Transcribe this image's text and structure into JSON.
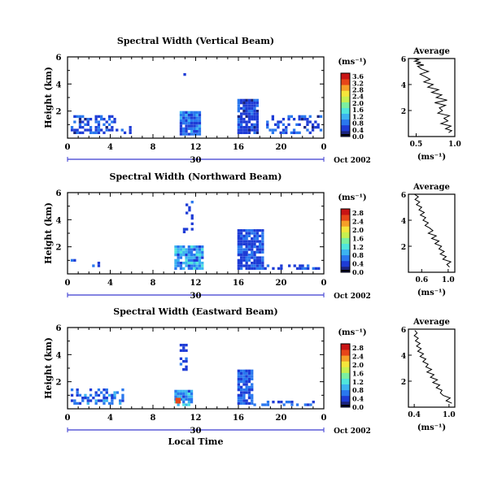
{
  "colors": {
    "scale": [
      "#1a237e",
      "#1e3cd6",
      "#2a78ee",
      "#3cb4f0",
      "#50e6dc",
      "#7cf0a0",
      "#c8f050",
      "#f5e63c",
      "#f5a028",
      "#e64619",
      "#c81414"
    ],
    "axis": "#000000",
    "date_axis": "#3a3ad0"
  },
  "chart_data": [
    {
      "type": "heatmap",
      "title": "Spectral Width (Vertical Beam)",
      "ylabel": "Height (km)",
      "xlabel": "",
      "xlim": [
        0,
        24
      ],
      "ylim": [
        0,
        6
      ],
      "x_ticks": [
        "0",
        "4",
        "8",
        "12",
        "16",
        "20",
        "0"
      ],
      "y_ticks": [
        "2",
        "4",
        "6"
      ],
      "date_label": "Oct 2002",
      "date_tick": "30",
      "colorbar": {
        "unit": "(ms⁻¹)",
        "ticks": [
          "0.0",
          "0.4",
          "0.8",
          "1.2",
          "1.6",
          "2.0",
          "2.4",
          "2.8",
          "3.2",
          "3.6"
        ],
        "range": [
          0,
          3.8
        ]
      },
      "blocks": [
        {
          "x": [
            0.3,
            4.5
          ],
          "y": [
            0.3,
            1.6
          ],
          "density": 0.5,
          "v": [
            0.3,
            0.9
          ]
        },
        {
          "x": [
            4.5,
            5.8
          ],
          "y": [
            0.3,
            0.8
          ],
          "density": 0.3,
          "v": [
            0.3,
            0.8
          ]
        },
        {
          "x": [
            10.5,
            12.4
          ],
          "y": [
            0.2,
            1.8
          ],
          "density": 0.95,
          "v": [
            0.4,
            1.1
          ]
        },
        {
          "x": [
            10.6,
            11.0
          ],
          "y": [
            3.6,
            5.0
          ],
          "density": 0.3,
          "v": [
            0.3,
            0.6
          ]
        },
        {
          "x": [
            15.9,
            17.7
          ],
          "y": [
            0.3,
            2.9
          ],
          "density": 0.85,
          "v": [
            0.3,
            0.8
          ]
        },
        {
          "x": [
            18.6,
            23.8
          ],
          "y": [
            0.3,
            1.5
          ],
          "density": 0.4,
          "v": [
            0.3,
            0.9
          ]
        }
      ],
      "average": {
        "title": "Average",
        "xlabel": "(ms⁻¹)",
        "xlim": [
          0.4,
          1.0
        ],
        "x_ticks": [
          "0.5",
          "1.0"
        ],
        "y_ticks": [
          "2",
          "4",
          "6"
        ],
        "ylim": [
          0,
          6
        ],
        "x": [
          0.92,
          0.96,
          0.88,
          0.95,
          0.82,
          0.91,
          0.86,
          0.93,
          0.78,
          0.84,
          0.8,
          0.88,
          0.74,
          0.9,
          0.76,
          0.83,
          0.7,
          0.79,
          0.65,
          0.72,
          0.6,
          0.68,
          0.62,
          0.55,
          0.66,
          0.57,
          0.52,
          0.6,
          0.5,
          0.56,
          0.48,
          0.53,
          0.47
        ],
        "y": [
          0.3,
          0.45,
          0.6,
          0.8,
          1.0,
          1.2,
          1.4,
          1.6,
          1.8,
          2.0,
          2.2,
          2.4,
          2.6,
          2.8,
          3.0,
          3.2,
          3.4,
          3.6,
          3.8,
          4.0,
          4.2,
          4.4,
          4.6,
          4.8,
          5.0,
          5.2,
          5.4,
          5.5,
          5.6,
          5.7,
          5.8,
          5.9,
          6.0
        ]
      }
    },
    {
      "type": "heatmap",
      "title": "Spectral Width (Northward Beam)",
      "ylabel": "Height (km)",
      "xlabel": "",
      "xlim": [
        0,
        24
      ],
      "ylim": [
        0,
        6
      ],
      "x_ticks": [
        "0",
        "4",
        "8",
        "12",
        "16",
        "20",
        "0"
      ],
      "y_ticks": [
        "2",
        "4",
        "6"
      ],
      "date_label": "Oct 2002",
      "date_tick": "30",
      "colorbar": {
        "unit": "(ms⁻¹)",
        "ticks": [
          "0.0",
          "0.4",
          "0.8",
          "1.2",
          "1.6",
          "2.0",
          "2.4",
          "2.8"
        ],
        "range": [
          0,
          3.0
        ]
      },
      "blocks": [
        {
          "x": [
            0.3,
            3.8
          ],
          "y": [
            0.3,
            1.0
          ],
          "density": 0.15,
          "v": [
            0.3,
            0.7
          ]
        },
        {
          "x": [
            10.0,
            12.7
          ],
          "y": [
            0.3,
            2.0
          ],
          "density": 0.9,
          "v": [
            0.4,
            1.2
          ]
        },
        {
          "x": [
            10.8,
            11.6
          ],
          "y": [
            3.0,
            5.4
          ],
          "density": 0.3,
          "v": [
            0.3,
            0.6
          ]
        },
        {
          "x": [
            15.9,
            18.4
          ],
          "y": [
            0.3,
            3.2
          ],
          "density": 0.85,
          "v": [
            0.3,
            0.8
          ]
        },
        {
          "x": [
            18.4,
            23.5
          ],
          "y": [
            0.3,
            0.7
          ],
          "density": 0.45,
          "v": [
            0.3,
            0.7
          ]
        }
      ],
      "average": {
        "title": "Average",
        "xlabel": "(ms⁻¹)",
        "xlim": [
          0.4,
          1.1
        ],
        "x_ticks": [
          "0.6",
          "1.0"
        ],
        "y_ticks": [
          "2",
          "4",
          "6"
        ],
        "ylim": [
          0,
          6
        ],
        "x": [
          1.02,
          0.98,
          1.04,
          0.92,
          0.97,
          0.88,
          0.94,
          0.86,
          0.9,
          0.8,
          0.86,
          0.75,
          0.82,
          0.7,
          0.77,
          0.72,
          0.65,
          0.7,
          0.62,
          0.66,
          0.58,
          0.64,
          0.56,
          0.6,
          0.52,
          0.57,
          0.5,
          0.55,
          0.49
        ],
        "y": [
          0.4,
          0.6,
          0.8,
          1.0,
          1.2,
          1.4,
          1.6,
          1.8,
          2.0,
          2.2,
          2.4,
          2.6,
          2.8,
          3.0,
          3.2,
          3.4,
          3.6,
          3.8,
          4.0,
          4.2,
          4.4,
          4.6,
          4.8,
          5.0,
          5.2,
          5.4,
          5.6,
          5.8,
          6.0
        ]
      }
    },
    {
      "type": "heatmap",
      "title": "Spectral Width (Eastward Beam)",
      "ylabel": "Height (km)",
      "xlabel": "Local Time",
      "xlim": [
        0,
        24
      ],
      "ylim": [
        0,
        6
      ],
      "x_ticks": [
        "0",
        "4",
        "8",
        "12",
        "16",
        "20",
        "0"
      ],
      "y_ticks": [
        "2",
        "4",
        "6"
      ],
      "date_label": "Oct 2002",
      "date_tick": "30",
      "colorbar": {
        "unit": "(ms⁻¹)",
        "ticks": [
          "0.0",
          "0.4",
          "0.8",
          "1.2",
          "1.6",
          "2.0",
          "2.4",
          "2.8"
        ],
        "range": [
          0,
          3.0
        ]
      },
      "blocks": [
        {
          "x": [
            0.3,
            5.3
          ],
          "y": [
            0.3,
            1.3
          ],
          "density": 0.45,
          "v": [
            0.3,
            0.9
          ]
        },
        {
          "x": [
            10.0,
            11.6
          ],
          "y": [
            0.2,
            1.4
          ],
          "density": 0.85,
          "v": [
            0.4,
            1.2
          ]
        },
        {
          "x": [
            10.5,
            11.1
          ],
          "y": [
            2.8,
            5.2
          ],
          "density": 0.4,
          "v": [
            0.3,
            0.6
          ]
        },
        {
          "x": [
            15.9,
            17.2
          ],
          "y": [
            0.3,
            2.8
          ],
          "density": 0.85,
          "v": [
            0.3,
            0.8
          ]
        },
        {
          "x": [
            17.4,
            23.5
          ],
          "y": [
            0.2,
            0.6
          ],
          "density": 0.4,
          "v": [
            0.3,
            0.8
          ]
        }
      ],
      "hot_spots": [
        {
          "x": 10.1,
          "y": 0.45,
          "v": 2.7
        },
        {
          "x": 10.3,
          "y": 0.45,
          "v": 2.5
        }
      ],
      "average": {
        "title": "Average",
        "xlabel": "(ms⁻¹)",
        "xlim": [
          0.3,
          1.1
        ],
        "x_ticks": [
          "0.4",
          "1.0"
        ],
        "y_ticks": [
          "2",
          "4",
          "6"
        ],
        "ylim": [
          0,
          6
        ],
        "x": [
          1.05,
          0.95,
          1.02,
          0.9,
          0.85,
          0.88,
          0.78,
          0.84,
          0.72,
          0.8,
          0.68,
          0.74,
          0.62,
          0.7,
          0.6,
          0.64,
          0.55,
          0.6,
          0.5,
          0.56,
          0.46,
          0.52,
          0.44,
          0.5,
          0.42,
          0.47,
          0.4,
          0.45,
          0.41
        ],
        "y": [
          0.3,
          0.5,
          0.7,
          0.9,
          1.1,
          1.3,
          1.5,
          1.7,
          1.9,
          2.1,
          2.3,
          2.5,
          2.7,
          2.9,
          3.1,
          3.3,
          3.5,
          3.7,
          3.9,
          4.1,
          4.3,
          4.5,
          4.7,
          4.9,
          5.1,
          5.3,
          5.5,
          5.7,
          5.9
        ]
      }
    }
  ]
}
